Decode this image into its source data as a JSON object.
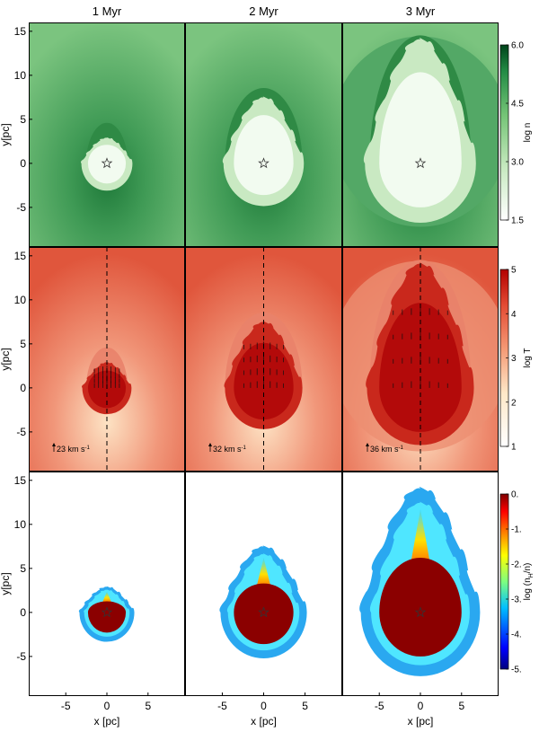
{
  "chart_data": {
    "type": "heatmap",
    "columns": [
      "1 Myr",
      "2 Myr",
      "3 Myr"
    ],
    "xlabel": "x [pc]",
    "ylabel": "y[pc]",
    "xlim": [
      -9.5,
      9.5
    ],
    "ylim": [
      -9.5,
      16
    ],
    "xticks": [
      -5,
      0,
      5
    ],
    "xtick_labels": [
      "-5",
      "0",
      "5"
    ],
    "yticks": [
      -5,
      0,
      5,
      10,
      15
    ],
    "ytick_labels": [
      "-5",
      "0",
      "5",
      "10",
      "15"
    ],
    "star_position": [
      0,
      0
    ],
    "bubbles": [
      {
        "time": "1 Myr",
        "hot_radius": 2.3,
        "hot_top": 2.8,
        "shell_radius": 4.2,
        "shell_top": 5.0,
        "outer_radius": 0
      },
      {
        "time": "2 Myr",
        "hot_radius": 3.6,
        "hot_top": 7.3,
        "shell_radius": 7.8,
        "shell_top": 9.3,
        "outer_radius": 0
      },
      {
        "time": "3 Myr",
        "hot_radius": 5.0,
        "hot_top": 13.8,
        "shell_radius": 10.3,
        "shell_top": 15.8,
        "outer_radius": 10.3
      }
    ],
    "rows": [
      {
        "quantity": "density",
        "colorbar_label": "log n",
        "colorbar_ticks": [
          "6.0",
          "4.5",
          "3.0",
          "1.5"
        ],
        "colorbar_values": [
          6.0,
          4.5,
          3.0,
          1.5
        ],
        "colormap": [
          "#ffffff",
          "#c7e9c0",
          "#74c476",
          "#238b45",
          "#00441b"
        ]
      },
      {
        "quantity": "temperature",
        "colorbar_label": "log T",
        "colorbar_ticks": [
          "5",
          "4",
          "3",
          "2",
          "1"
        ],
        "colorbar_values": [
          5,
          4,
          3,
          2,
          1
        ],
        "colormap": [
          "#ffffff",
          "#fee8c8",
          "#f59a75",
          "#e34a33",
          "#b30000"
        ],
        "velocity_labels": [
          "23 km s",
          "32 km s",
          "36 km s"
        ],
        "velocity_unit_exponent": "-1",
        "velocity_values_kms": [
          23,
          32,
          36
        ]
      },
      {
        "quantity": "neutral fraction",
        "colorbar_label": "log (n",
        "colorbar_label_sub": "H",
        "colorbar_label_end": "/n)",
        "colorbar_ticks": [
          "0.",
          "-1.",
          "-2.",
          "-3.",
          "-4.",
          "-5."
        ],
        "colorbar_values": [
          0,
          -1,
          -2,
          -3,
          -4,
          -5
        ],
        "colormap": [
          "#00007f",
          "#0000ff",
          "#00bfff",
          "#7fff7f",
          "#ffff00",
          "#ff7f00",
          "#ff0000",
          "#7f0000"
        ]
      }
    ]
  }
}
